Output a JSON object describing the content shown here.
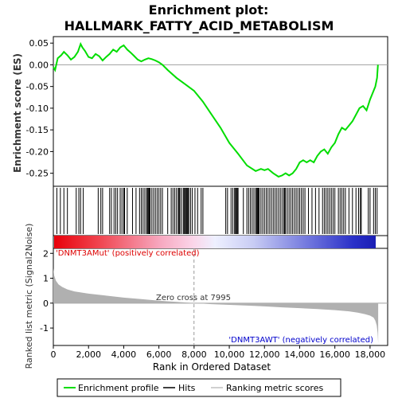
{
  "title_line1": "Enrichment plot:",
  "title_line2": "HALLMARK_FATTY_ACID_METABOLISM",
  "top_ylabel": "Enrichment score (ES)",
  "bottom_ylabel": "Ranked list metric (Signal2Noise)",
  "xlabel": "Rank in Ordered Dataset",
  "zero_cross_label": "Zero cross at 7995",
  "pos_label": "'DNMT3AMut' (positively correlated)",
  "neg_label": "'DNMT3AWT' (negatively correlated)",
  "legend": {
    "enrichment": "Enrichment profile",
    "hits": "Hits",
    "ranking": "Ranking metric scores"
  },
  "colors": {
    "enrichment_line": "#00dd00",
    "hits": "#000000",
    "metric_fill": "#b0b0b0",
    "pos_text": "#dd0000",
    "neg_text": "#0000cc",
    "zero_line": "#a0a0a0"
  },
  "chart_data": [
    {
      "type": "line",
      "name": "enrichment_profile",
      "xlim": [
        0,
        19000
      ],
      "ylim": [
        -0.28,
        0.065
      ],
      "yticks": [
        0.05,
        0.0,
        -0.05,
        -0.1,
        -0.15,
        -0.2,
        -0.25
      ],
      "ytick_labels": [
        "0.05",
        "0.00",
        "-0.05",
        "-0.10",
        "-0.15",
        "-0.20",
        "-0.25"
      ],
      "x": [
        0,
        100,
        250,
        450,
        600,
        800,
        1000,
        1200,
        1400,
        1550,
        1650,
        1800,
        2000,
        2200,
        2400,
        2600,
        2800,
        3000,
        3200,
        3400,
        3600,
        3800,
        4000,
        4200,
        4400,
        4600,
        4800,
        5000,
        5200,
        5400,
        5600,
        5800,
        6000,
        6200,
        6500,
        7000,
        7500,
        8000,
        8500,
        9000,
        9500,
        10000,
        10500,
        11000,
        11500,
        11800,
        12000,
        12200,
        12500,
        12800,
        13000,
        13200,
        13400,
        13600,
        13800,
        14000,
        14200,
        14400,
        14600,
        14800,
        15000,
        15200,
        15400,
        15600,
        15800,
        16000,
        16200,
        16400,
        16600,
        16800,
        17000,
        17200,
        17400,
        17600,
        17800,
        18000,
        18200,
        18300,
        18400,
        18450
      ],
      "y": [
        -0.005,
        -0.012,
        0.015,
        0.022,
        0.03,
        0.022,
        0.012,
        0.018,
        0.03,
        0.048,
        0.04,
        0.032,
        0.018,
        0.015,
        0.025,
        0.02,
        0.01,
        0.018,
        0.025,
        0.035,
        0.03,
        0.04,
        0.045,
        0.035,
        0.028,
        0.02,
        0.012,
        0.008,
        0.012,
        0.015,
        0.013,
        0.01,
        0.006,
        0.0,
        -0.012,
        -0.03,
        -0.045,
        -0.06,
        -0.085,
        -0.115,
        -0.145,
        -0.18,
        -0.205,
        -0.232,
        -0.245,
        -0.24,
        -0.243,
        -0.24,
        -0.25,
        -0.258,
        -0.255,
        -0.25,
        -0.255,
        -0.25,
        -0.24,
        -0.225,
        -0.22,
        -0.225,
        -0.22,
        -0.225,
        -0.21,
        -0.2,
        -0.195,
        -0.205,
        -0.19,
        -0.18,
        -0.16,
        -0.145,
        -0.15,
        -0.14,
        -0.13,
        -0.115,
        -0.1,
        -0.095,
        -0.105,
        -0.08,
        -0.06,
        -0.05,
        -0.03,
        0.0
      ]
    },
    {
      "type": "hits",
      "name": "hits",
      "positions": [
        200,
        400,
        600,
        800,
        1300,
        1450,
        1550,
        1700,
        2550,
        2700,
        2800,
        3200,
        3300,
        3450,
        3550,
        3650,
        3800,
        3900,
        4000,
        4050,
        4200,
        4500,
        4700,
        4900,
        5000,
        5100,
        5200,
        5300,
        5350,
        5400,
        5450,
        5500,
        5600,
        5700,
        5800,
        5900,
        6000,
        6100,
        6200,
        6500,
        6700,
        6800,
        6900,
        7000,
        7100,
        7150,
        7200,
        7300,
        7400,
        7450,
        7500,
        7550,
        7600,
        7650,
        7700,
        7800,
        7900,
        8050,
        8200,
        8400,
        8500,
        9800,
        9900,
        10100,
        10200,
        10300,
        10350,
        10400,
        10450,
        10500,
        10800,
        11000,
        11100,
        11200,
        11300,
        11400,
        11500,
        11550,
        11600,
        11650,
        11700,
        11800,
        11900,
        12000,
        12100,
        12200,
        12300,
        12400,
        12500,
        12600,
        12700,
        12800,
        12900,
        13000,
        13100,
        13150,
        13200,
        13300,
        13400,
        13500,
        13600,
        13700,
        13800,
        13900,
        14000,
        14100,
        14200,
        14300,
        14500,
        14700,
        14900,
        15100,
        15300,
        15400,
        15500,
        15600,
        15700,
        15800,
        15900,
        16000,
        16200,
        16300,
        16400,
        16500,
        16600,
        16800,
        17000,
        17200,
        17350,
        17450,
        17500,
        17900,
        18000,
        18200,
        18300,
        18400
      ]
    },
    {
      "type": "area",
      "name": "ranking_metric",
      "xlim": [
        0,
        19000
      ],
      "ylim": [
        -1.7,
        2.2
      ],
      "yticks": [
        2,
        1,
        0,
        -1
      ],
      "ytick_labels": [
        "2",
        "1",
        "0",
        "-1"
      ],
      "zero_cross": 7995,
      "x": [
        0,
        50,
        150,
        300,
        500,
        800,
        1200,
        2000,
        3000,
        4000,
        5000,
        6000,
        7000,
        7995,
        9000,
        10000,
        11000,
        12000,
        13000,
        14000,
        15000,
        16000,
        16800,
        17300,
        17700,
        18000,
        18200,
        18300,
        18380,
        18430,
        18460
      ],
      "y": [
        1.4,
        1.1,
        0.9,
        0.75,
        0.65,
        0.55,
        0.47,
        0.38,
        0.3,
        0.22,
        0.16,
        0.1,
        0.05,
        0.0,
        -0.04,
        -0.07,
        -0.1,
        -0.13,
        -0.17,
        -0.2,
        -0.24,
        -0.28,
        -0.33,
        -0.38,
        -0.44,
        -0.5,
        -0.58,
        -0.7,
        -0.9,
        -1.2,
        -1.6
      ]
    }
  ],
  "xticks": [
    0,
    2000,
    4000,
    6000,
    8000,
    10000,
    12000,
    14000,
    16000,
    18000
  ],
  "xtick_labels": [
    "0",
    "2,000",
    "4,000",
    "6,000",
    "8,000",
    "10,000",
    "12,000",
    "14,000",
    "16,000",
    "18,000"
  ]
}
